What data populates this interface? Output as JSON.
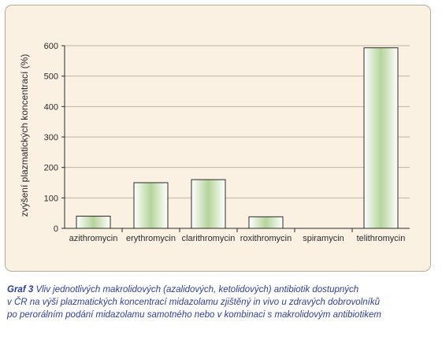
{
  "chart_data": {
    "type": "bar",
    "ylabel": "zvýšení plazmatických koncentrací (%)",
    "xlabel": "",
    "ylim": [
      0,
      600
    ],
    "yticks": [
      0,
      100,
      200,
      300,
      400,
      500,
      600
    ],
    "grid": true,
    "categories": [
      "azithromycin",
      "erythromycin",
      "clarithromycin",
      "roxithromycin",
      "spiramycin",
      "telithromycin"
    ],
    "values": [
      40,
      150,
      160,
      38,
      0,
      593
    ],
    "colors": {
      "bar_edge": "#ffffff",
      "bar_center": "#b5d49b",
      "bar_outline": "#2a2a2a",
      "grid": "#bfb4a4",
      "axis": "#2a2a2a",
      "panel_bg": "#fbf1e3"
    }
  },
  "caption": {
    "label": "Graf 3",
    "text_line1": "Vliv jednotlivých makrolidových (azalidových, ketolidových) antibiotik dostupných",
    "text_line2": "v ČR na výši plazmatických koncentrací midazolamu zjištěný in vivo u zdravých dobrovolníků",
    "text_line3": "po perorálním podání midazolamu samotného nebo v kombinaci s makrolidovým antibiotikem"
  }
}
